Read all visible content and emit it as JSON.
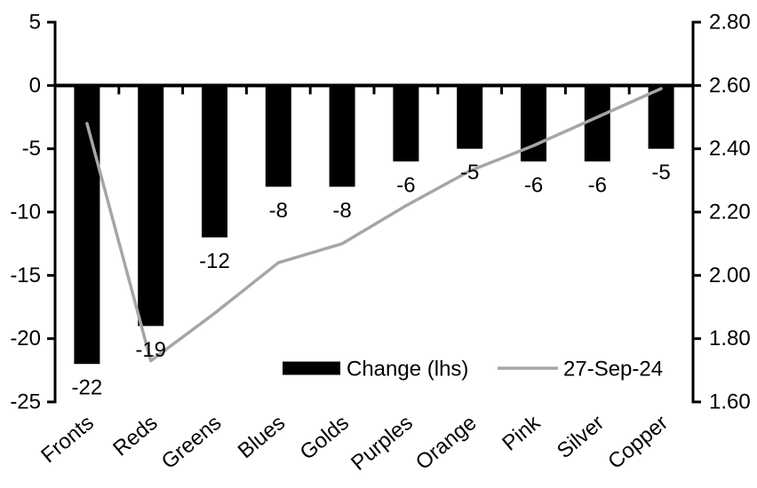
{
  "chart_data": {
    "type": "bar",
    "subtype": "combo-bar-line-dual-axis",
    "categories": [
      "Fronts",
      "Reds",
      "Greens",
      "Blues",
      "Golds",
      "Purples",
      "Orange",
      "Pink",
      "Silver",
      "Copper"
    ],
    "series": [
      {
        "name": "Change (lhs)",
        "type": "bar",
        "axis": "left",
        "color": "#000000",
        "values": [
          -22,
          -19,
          -12,
          -8,
          -8,
          -6,
          -5,
          -6,
          -6,
          -5
        ],
        "data_labels": [
          "-22",
          "-19",
          "-12",
          "-8",
          "-8",
          "-6",
          "-5",
          "-6",
          "-6",
          "-5"
        ]
      },
      {
        "name": "27-Sep-24",
        "type": "line",
        "axis": "right",
        "color": "#a6a6a6",
        "values": [
          2.48,
          1.73,
          1.88,
          2.04,
          2.1,
          2.22,
          2.33,
          2.41,
          2.5,
          2.59
        ]
      }
    ],
    "left_axis": {
      "min": -25,
      "max": 5,
      "step": 5,
      "tick_labels": [
        "5",
        "0",
        "-5",
        "-10",
        "-15",
        "-20",
        "-25"
      ]
    },
    "right_axis": {
      "min": 1.6,
      "max": 2.8,
      "step": 0.2,
      "tick_labels": [
        "2.80",
        "2.60",
        "2.40",
        "2.20",
        "2.00",
        "1.80",
        "1.60"
      ]
    },
    "legend": {
      "position": "bottom-inside",
      "items": [
        {
          "label": "Change (lhs)",
          "swatch": "bar",
          "color": "#000000"
        },
        {
          "label": "27-Sep-24",
          "swatch": "line",
          "color": "#a6a6a6"
        }
      ]
    },
    "layout_hints": {
      "grid": "off",
      "category_label_rotation": -40,
      "bars_baseline": 0,
      "axis_color": "#000000",
      "background": "#ffffff"
    }
  }
}
